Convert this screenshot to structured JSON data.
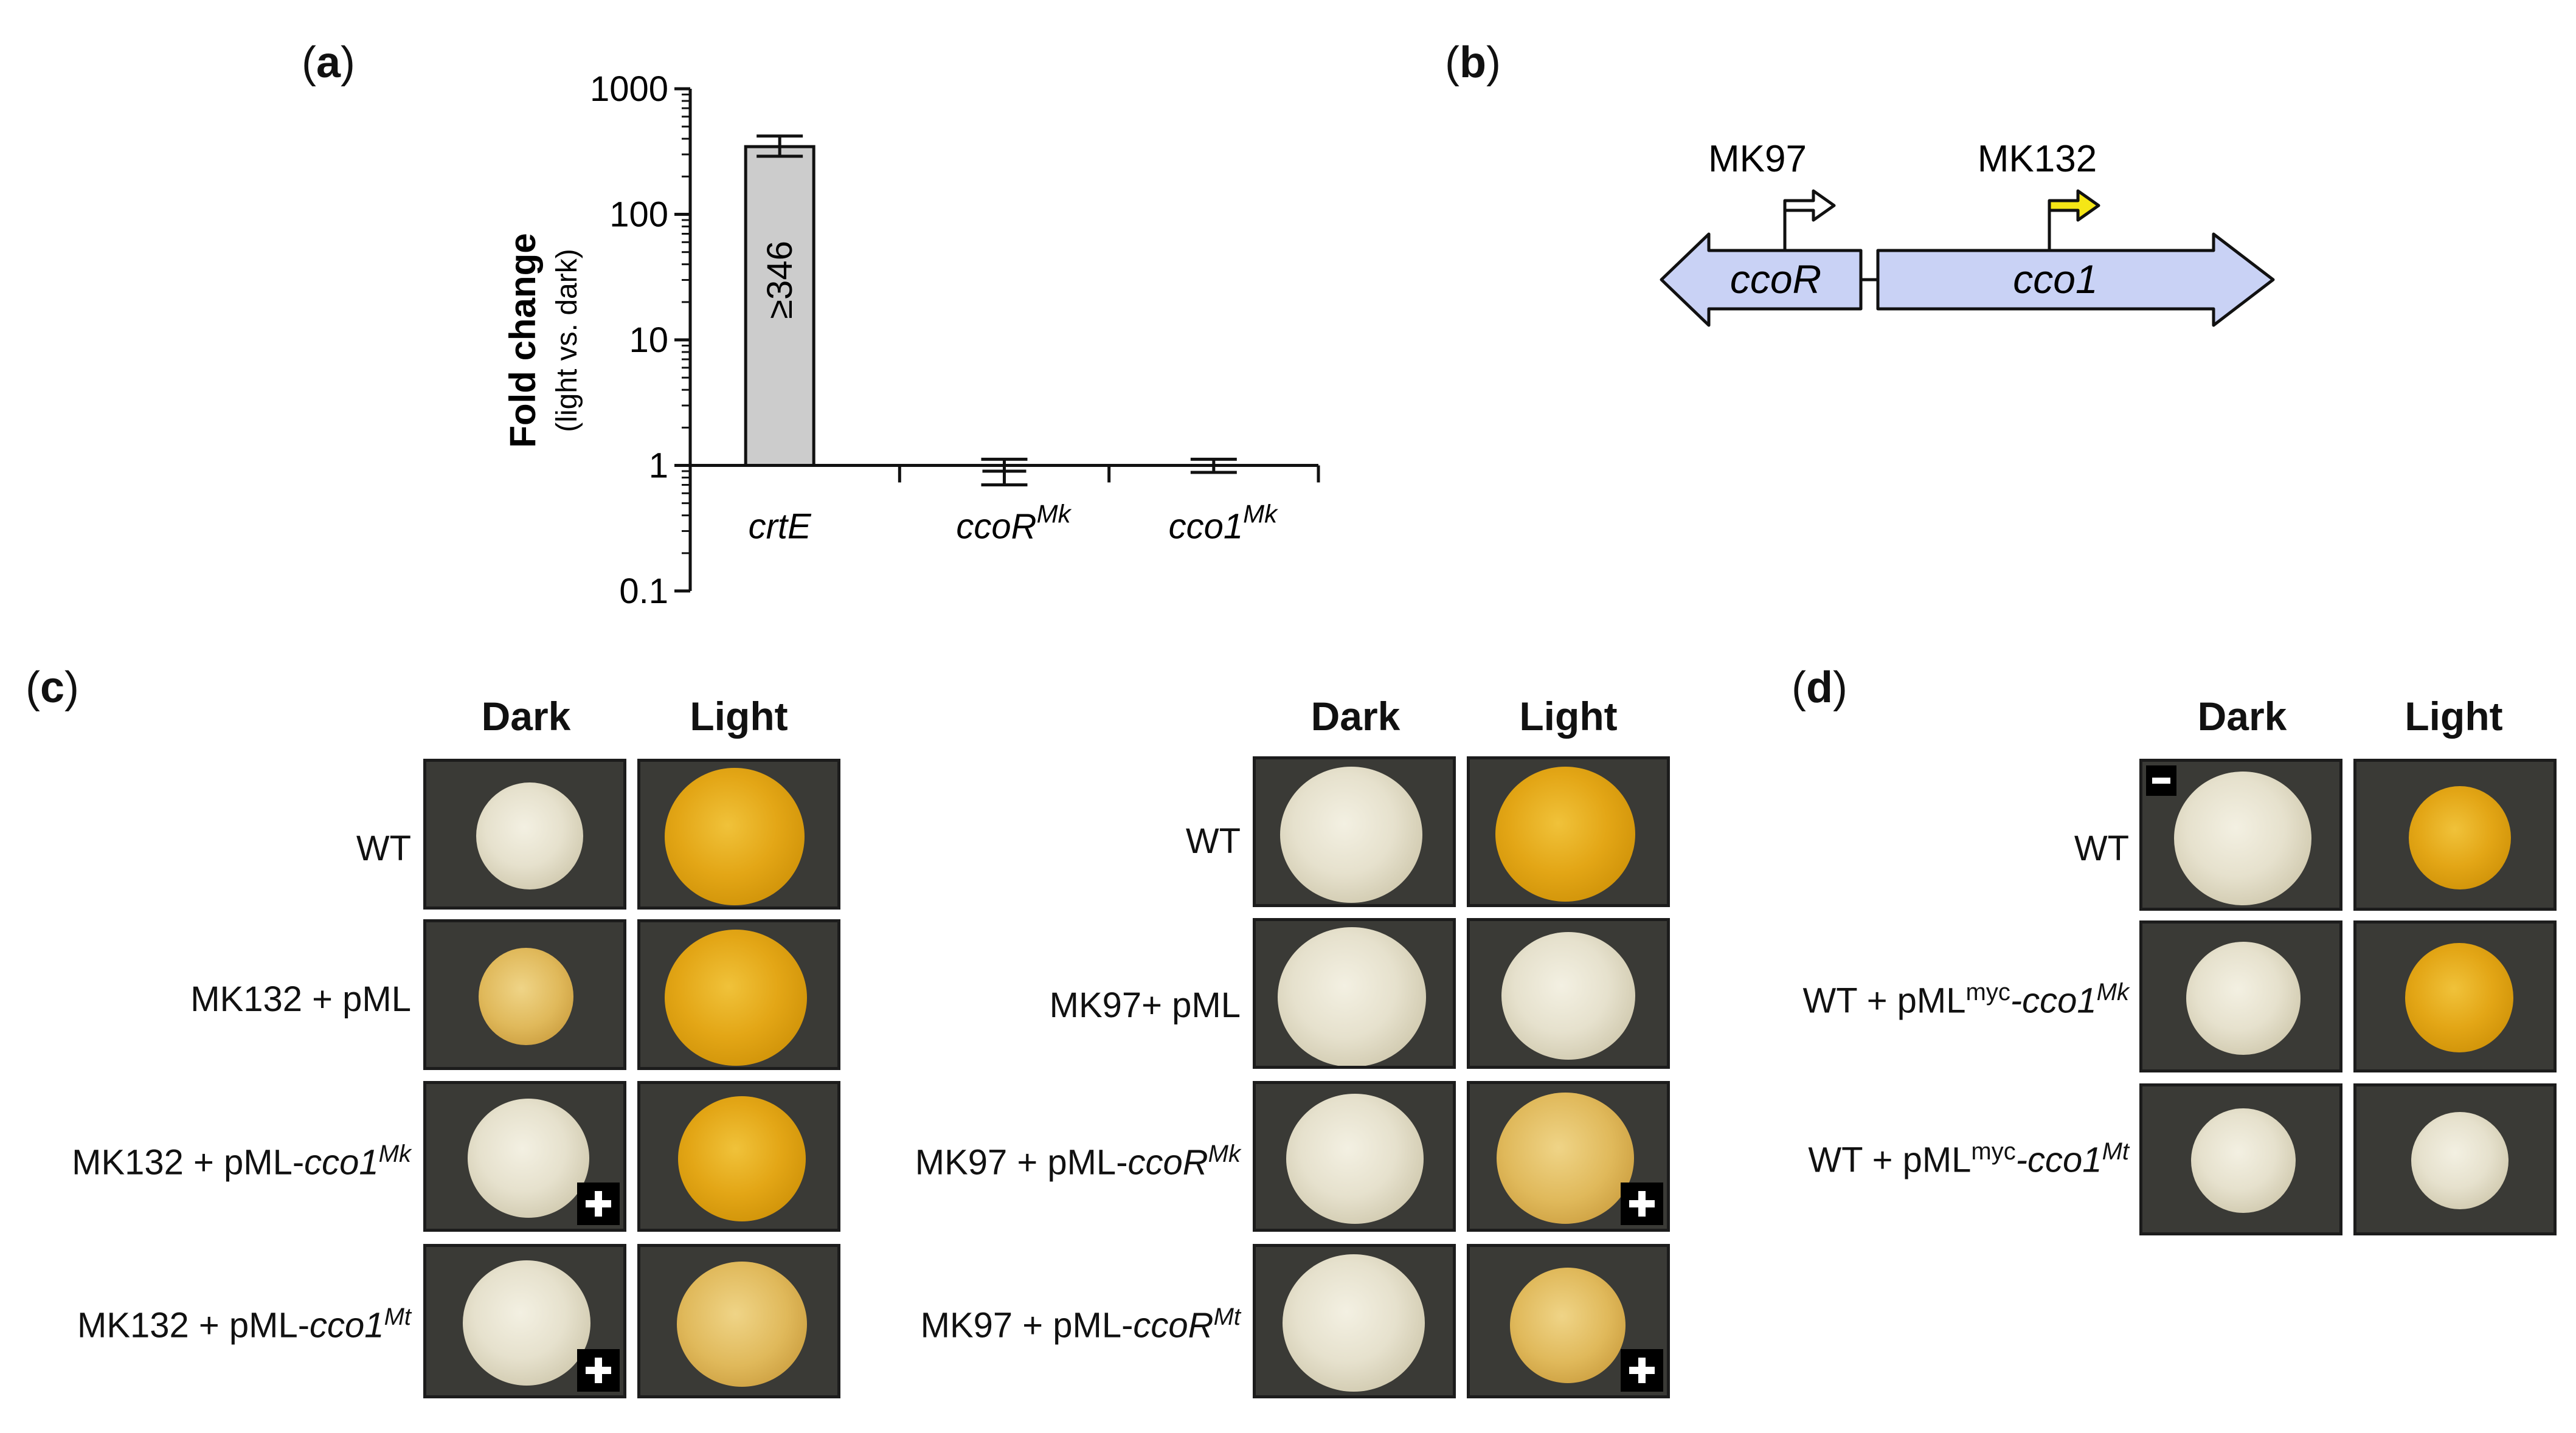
{
  "panel_labels": {
    "a": "a",
    "b": "b",
    "c": "c",
    "d": "d"
  },
  "chart_data": {
    "type": "bar",
    "log_scale": true,
    "ylabel": "Fold change",
    "ylabel_sub": "(light vs. dark)",
    "yticks": [
      "1000",
      "100",
      "10",
      "1",
      "0.1"
    ],
    "ylim": [
      0.1,
      1000
    ],
    "categories": [
      {
        "base": "crtE",
        "sup": ""
      },
      {
        "base": "ccoR",
        "sup": "Mk"
      },
      {
        "base": "cco1",
        "sup": "Mk"
      }
    ],
    "values": [
      346,
      0.9,
      1.0
    ],
    "error_low": [
      290,
      0.7,
      0.88
    ],
    "error_high": [
      420,
      1.12,
      1.12
    ],
    "bar_annotation": "≥346",
    "bar_color": "#cccccc"
  },
  "gene_diagram": {
    "promoter1": "MK97",
    "promoter2": "MK132",
    "gene1": "ccoR",
    "gene2": "cco1",
    "gene_fill": "#c9d2f5",
    "arrow1_color": "#ffffff",
    "arrow2_color": "#f5e616"
  },
  "panel_c_left": {
    "col_dark": "Dark",
    "col_light": "Light",
    "rows": [
      {
        "label": "WT",
        "italic": "",
        "sup": ""
      },
      {
        "label": "MK132 + pML",
        "italic": "",
        "sup": ""
      },
      {
        "label": "MK132 + pML-",
        "italic": "cco1",
        "sup": "Mk"
      },
      {
        "label": "MK132 + pML-",
        "italic": "cco1",
        "sup": "Mt"
      }
    ]
  },
  "panel_c_right": {
    "col_dark": "Dark",
    "col_light": "Light",
    "rows": [
      {
        "label": "WT",
        "italic": "",
        "sup": ""
      },
      {
        "label": "MK97+ pML",
        "italic": "",
        "sup": ""
      },
      {
        "label": "MK97 + pML-",
        "italic": "ccoR",
        "sup": "Mk"
      },
      {
        "label": "MK97 + pML-",
        "italic": "ccoR",
        "sup": "Mt"
      }
    ]
  },
  "panel_d": {
    "col_dark": "Dark",
    "col_light": "Light",
    "rows": [
      {
        "label": "WT",
        "mid": "",
        "italic": "",
        "sup": ""
      },
      {
        "label": "WT + pML",
        "mid": "myc",
        "italic": "-cco1",
        "sup": "Mk"
      },
      {
        "label": "WT + pML",
        "mid": "myc",
        "italic": "-cco1",
        "sup": "Mt"
      }
    ]
  },
  "marker_icons": {
    "plus": "plus-icon",
    "minus": "minus-icon"
  }
}
